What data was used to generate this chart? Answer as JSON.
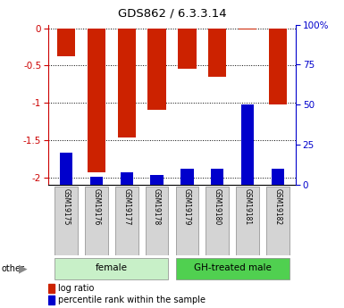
{
  "title": "GDS862 / 6.3.3.14",
  "samples": [
    "GSM19175",
    "GSM19176",
    "GSM19177",
    "GSM19178",
    "GSM19179",
    "GSM19180",
    "GSM19181",
    "GSM19182"
  ],
  "log_ratio": [
    -0.38,
    -1.93,
    -1.47,
    -1.09,
    -0.54,
    -0.65,
    -0.02,
    -1.02
  ],
  "percentile_rank": [
    20,
    5,
    8,
    6,
    10,
    10,
    50,
    10
  ],
  "ylim_left": [
    -2.1,
    0.05
  ],
  "ylim_right": [
    -2.1,
    0.05
  ],
  "yticks_left": [
    0.0,
    -0.5,
    -1.0,
    -1.5,
    -2.0
  ],
  "yticks_right": [
    0,
    25,
    50,
    75,
    100
  ],
  "bar_color": "#cc2200",
  "percentile_color": "#0000cc",
  "bar_width": 0.6,
  "plot_bg": "#ffffff",
  "female_color": "#c8f0c8",
  "male_color": "#50d050",
  "sample_box_color": "#d4d4d4",
  "left_axis_color": "#cc0000",
  "right_axis_color": "#0000cc"
}
